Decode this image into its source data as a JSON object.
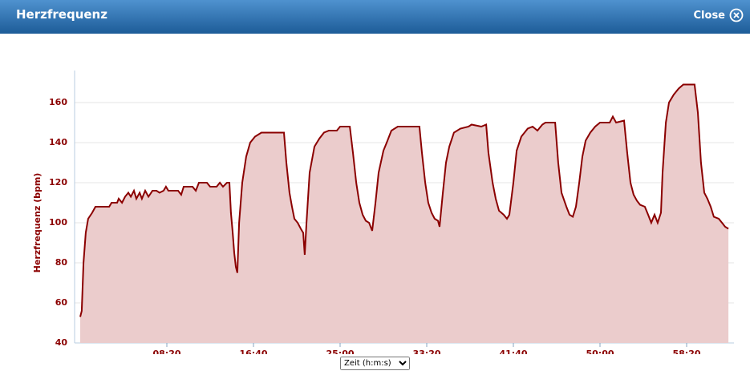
{
  "header": {
    "title": "Herzfrequenz",
    "close": "Close"
  },
  "chart_data": {
    "type": "area",
    "ylabel": "Herzfrequenz (bpm)",
    "xlabel": "Zeit (h:m:s)",
    "color": "#8b0000",
    "area_color": "#ebcccc",
    "grid": true,
    "xlim": [
      0,
      3750
    ],
    "ylim": [
      40,
      176
    ],
    "yticks": [
      40,
      60,
      80,
      100,
      120,
      140,
      160
    ],
    "xticks": [
      {
        "value": 500,
        "label": "08:20"
      },
      {
        "value": 1000,
        "label": "16:40"
      },
      {
        "value": 1500,
        "label": "25:00"
      },
      {
        "value": 2000,
        "label": "33:20"
      },
      {
        "value": 2500,
        "label": "41:40"
      },
      {
        "value": 3000,
        "label": "50:00"
      },
      {
        "value": 3500,
        "label": "58:20"
      }
    ],
    "x": [
      0,
      9,
      19,
      32,
      46,
      69,
      88,
      167,
      181,
      213,
      222,
      241,
      259,
      278,
      292,
      310,
      324,
      343,
      356,
      375,
      394,
      417,
      440,
      458,
      481,
      495,
      509,
      565,
      583,
      597,
      648,
      667,
      685,
      731,
      750,
      787,
      806,
      824,
      847,
      861,
      870,
      880,
      889,
      898,
      907,
      917,
      935,
      958,
      981,
      1009,
      1046,
      1176,
      1190,
      1208,
      1222,
      1236,
      1255,
      1273,
      1287,
      1296,
      1306,
      1324,
      1352,
      1380,
      1407,
      1435,
      1481,
      1500,
      1556,
      1574,
      1593,
      1611,
      1630,
      1648,
      1667,
      1685,
      1704,
      1722,
      1750,
      1769,
      1796,
      1833,
      1958,
      1972,
      1991,
      2009,
      2028,
      2046,
      2065,
      2074,
      2093,
      2111,
      2130,
      2157,
      2194,
      2241,
      2259,
      2315,
      2343,
      2356,
      2380,
      2398,
      2417,
      2444,
      2463,
      2477,
      2500,
      2519,
      2546,
      2583,
      2611,
      2639,
      2667,
      2685,
      2741,
      2759,
      2778,
      2806,
      2824,
      2843,
      2861,
      2880,
      2898,
      2917,
      2944,
      2972,
      3000,
      3056,
      3074,
      3093,
      3139,
      3157,
      3176,
      3194,
      3213,
      3231,
      3259,
      3278,
      3296,
      3315,
      3333,
      3352,
      3361,
      3380,
      3398,
      3426,
      3454,
      3481,
      3546,
      3565,
      3583,
      3602,
      3620,
      3639,
      3657,
      3685,
      3704,
      3722,
      3741
    ],
    "values": [
      53,
      56,
      80,
      95,
      102,
      105,
      108,
      108,
      110,
      110,
      112,
      110,
      113,
      115,
      113,
      116,
      112,
      115,
      112,
      116,
      113,
      116,
      116,
      115,
      116,
      118,
      116,
      116,
      114,
      118,
      118,
      116,
      120,
      120,
      118,
      118,
      120,
      118,
      120,
      120,
      105,
      95,
      85,
      78,
      75,
      100,
      120,
      133,
      140,
      143,
      145,
      145,
      130,
      115,
      108,
      102,
      100,
      97,
      95,
      84,
      100,
      125,
      138,
      142,
      145,
      146,
      146,
      148,
      148,
      135,
      120,
      110,
      104,
      101,
      100,
      96,
      110,
      125,
      136,
      140,
      146,
      148,
      148,
      135,
      120,
      110,
      105,
      102,
      101,
      98,
      115,
      130,
      138,
      145,
      147,
      148,
      149,
      148,
      149,
      135,
      120,
      112,
      106,
      104,
      102,
      104,
      120,
      136,
      143,
      147,
      148,
      146,
      149,
      150,
      150,
      130,
      115,
      108,
      104,
      103,
      108,
      120,
      133,
      141,
      145,
      148,
      150,
      150,
      153,
      150,
      151,
      135,
      120,
      114,
      111,
      109,
      108,
      104,
      100,
      104,
      100,
      105,
      125,
      150,
      160,
      164,
      167,
      169,
      169,
      155,
      130,
      115,
      112,
      108,
      103,
      102,
      100,
      98,
      97
    ]
  }
}
